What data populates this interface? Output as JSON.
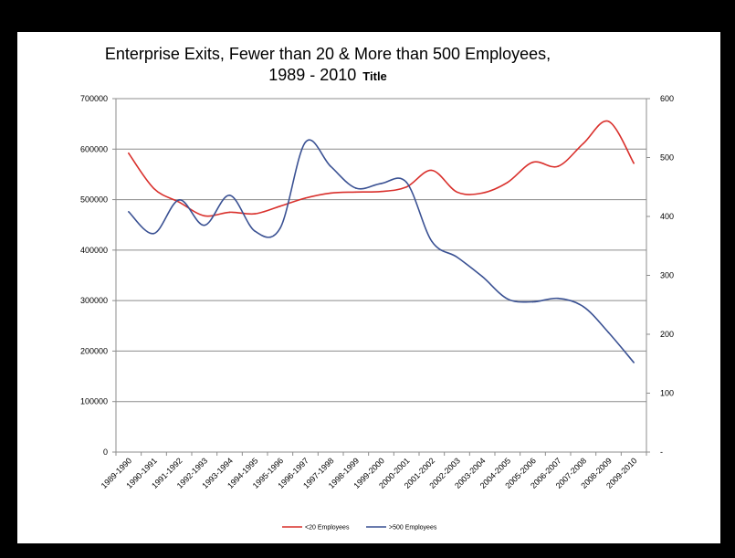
{
  "chart_data": {
    "type": "line",
    "title_line1": "Enterprise Exits, Fewer than 20 & More than 500 Employees,",
    "title_line2": "1989 - 2010",
    "title_suffix": "Title",
    "categories": [
      "1989-1990",
      "1990-1991",
      "1991-1992",
      "1992-1993",
      "1993-1994",
      "1994-1995",
      "1995-1996",
      "1996-1997",
      "1997-1998",
      "1998-1999",
      "1999-2000",
      "2000-2001",
      "2001-2002",
      "2002-2003",
      "2003-2004",
      "2004-2005",
      "2005-2006",
      "2006-2007",
      "2007-2008",
      "2008-2009",
      "2009-2010"
    ],
    "series": [
      {
        "name": "<20 Employees",
        "axis": "left",
        "color": "#d9302c",
        "values": [
          592000,
          522000,
          495000,
          468000,
          475000,
          472000,
          487000,
          503000,
          513000,
          515000,
          516000,
          525000,
          558000,
          515000,
          513000,
          534000,
          574000,
          566000,
          611000,
          655000,
          572000
        ]
      },
      {
        "name": ">500 Employees",
        "axis": "right",
        "color": "#3a5193",
        "values": [
          408000,
          371000,
          428000,
          385000,
          436000,
          375000,
          380000,
          526000,
          485000,
          448000,
          456000,
          458000,
          358000,
          331000,
          298000,
          260000,
          255000,
          261000,
          247000,
          203000,
          152000
        ]
      }
    ],
    "y_left": {
      "min": 0,
      "max": 700000,
      "ticks": [
        "0",
        "100000",
        "200000",
        "300000",
        "400000",
        "500000",
        "600000",
        "700000"
      ]
    },
    "y_right": {
      "min": 0,
      "max": 600,
      "ticks": [
        "-",
        "100",
        "200",
        "300",
        "400",
        "500",
        "600"
      ]
    },
    "grid": true,
    "legend_position": "bottom"
  }
}
